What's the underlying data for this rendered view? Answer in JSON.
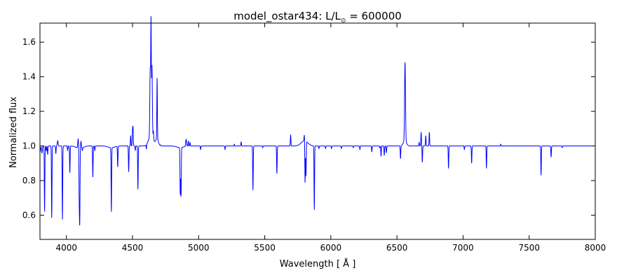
{
  "chart_data": {
    "type": "line",
    "title": "model_ostar434: L/L",
    "title_subscript": "⊙",
    "title_suffix": " = 600000",
    "xlabel": "Wavelength [ Å ]",
    "ylabel": "Normalized flux",
    "xlim": [
      3800,
      8000
    ],
    "ylim": [
      0.46,
      1.71
    ],
    "xticks": [
      4000,
      4500,
      5000,
      5500,
      6000,
      6500,
      7000,
      7500,
      8000
    ],
    "yticks": [
      0.6,
      0.8,
      1.0,
      1.2,
      1.4,
      1.6
    ],
    "ytick_labels": [
      "0.6",
      "0.8",
      "1.0",
      "1.2",
      "1.4",
      "1.6"
    ],
    "continuum": 1.0,
    "line_color": "#0000ff",
    "series": [
      {
        "features": [
          [
            3800,
            0.965,
            4
          ],
          [
            3815,
            0.96,
            3
          ],
          [
            3835,
            0.62,
            2
          ],
          [
            3848,
            0.97,
            2
          ],
          [
            3858,
            0.95,
            2
          ],
          [
            3889,
            0.585,
            2
          ],
          [
            3920,
            0.955,
            2
          ],
          [
            3934,
            1.03,
            3
          ],
          [
            3970,
            0.575,
            2
          ],
          [
            4009,
            0.975,
            2
          ],
          [
            4026,
            0.845,
            2
          ],
          [
            4089,
            1.055,
            3
          ],
          [
            4097,
            0.72,
            2
          ],
          [
            4101,
            0.6,
            2
          ],
          [
            4110,
            1.04,
            3
          ],
          [
            4121,
            0.985,
            2
          ],
          [
            4200,
            0.82,
            2
          ],
          [
            4215,
            0.975,
            2
          ],
          [
            4340,
            0.63,
            2
          ],
          [
            4388,
            0.88,
            2
          ],
          [
            4471,
            0.85,
            2
          ],
          [
            4486,
            1.06,
            2
          ],
          [
            4500,
            1.085,
            2
          ],
          [
            4504,
            1.1,
            2
          ],
          [
            4521,
            0.975,
            2
          ],
          [
            4541,
            0.75,
            2
          ],
          [
            4575,
            1.0,
            2
          ],
          [
            4605,
            0.975,
            2
          ],
          [
            4634,
            1.39,
            3
          ],
          [
            4640,
            1.61,
            2
          ],
          [
            4647,
            1.41,
            3
          ],
          [
            4658,
            1.05,
            2
          ],
          [
            4686,
            1.35,
            2
          ],
          [
            4713,
            1.005,
            2
          ],
          [
            4861,
            0.73,
            2
          ],
          [
            4867,
            0.72,
            2
          ],
          [
            4905,
            1.04,
            3
          ],
          [
            4922,
            1.03,
            2
          ],
          [
            4935,
            1.02,
            2
          ],
          [
            5015,
            0.98,
            2
          ],
          [
            5200,
            0.98,
            2
          ],
          [
            5270,
            1.01,
            2
          ],
          [
            5322,
            1.025,
            2
          ],
          [
            5411,
            0.745,
            2
          ],
          [
            5485,
            0.99,
            2
          ],
          [
            5592,
            0.84,
            2
          ],
          [
            5696,
            1.065,
            2
          ],
          [
            5801,
            1.045,
            3
          ],
          [
            5805,
            0.74,
            2
          ],
          [
            5812,
            0.8,
            2
          ],
          [
            5875,
            0.63,
            2
          ],
          [
            5910,
            0.985,
            2
          ],
          [
            5960,
            0.985,
            2
          ],
          [
            6005,
            0.985,
            2
          ],
          [
            6080,
            0.985,
            2
          ],
          [
            6170,
            0.99,
            2
          ],
          [
            6220,
            0.98,
            2
          ],
          [
            6310,
            0.965,
            2
          ],
          [
            6370,
            0.99,
            2
          ],
          [
            6380,
            0.94,
            2
          ],
          [
            6404,
            0.945,
            2
          ],
          [
            6420,
            0.96,
            2
          ],
          [
            6527,
            0.925,
            2
          ],
          [
            6560,
            1.31,
            3
          ],
          [
            6563,
            1.2,
            3
          ],
          [
            6668,
            1.02,
            2
          ],
          [
            6683,
            1.08,
            2
          ],
          [
            6692,
            0.905,
            2
          ],
          [
            6718,
            1.06,
            2
          ],
          [
            6745,
            1.08,
            2
          ],
          [
            6890,
            0.87,
            2
          ],
          [
            7010,
            0.98,
            2
          ],
          [
            7065,
            0.9,
            2
          ],
          [
            7177,
            0.87,
            2
          ],
          [
            7285,
            1.01,
            2
          ],
          [
            7590,
            0.83,
            2
          ],
          [
            7666,
            0.935,
            2
          ],
          [
            7750,
            0.99,
            2
          ]
        ],
        "broad_features": [
          [
            4640,
            1.06,
            18
          ],
          [
            4686,
            1.04,
            10
          ],
          [
            5801,
            1.03,
            25
          ],
          [
            6560,
            1.03,
            12
          ],
          [
            4101,
            0.985,
            25
          ],
          [
            4340,
            0.99,
            25
          ],
          [
            4861,
            0.99,
            25
          ]
        ]
      }
    ]
  }
}
